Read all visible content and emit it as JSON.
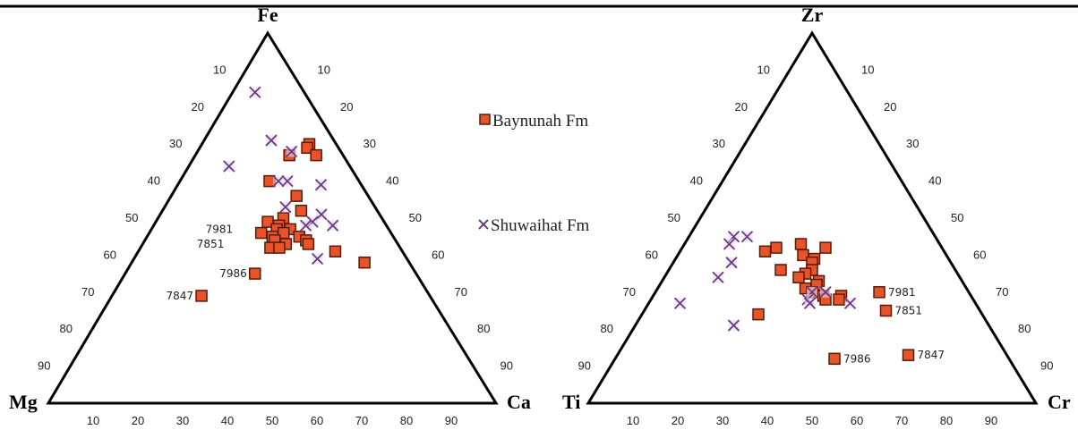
{
  "chart_data": [
    {
      "type": "ternary",
      "vertices": {
        "top": "Fe",
        "left": "Mg",
        "right": "Ca"
      },
      "ticks": {
        "bottom": [
          "10",
          "20",
          "30",
          "40",
          "50",
          "60",
          "70",
          "80",
          "90"
        ],
        "left": [
          "10",
          "20",
          "30",
          "40",
          "50",
          "60",
          "70",
          "80",
          "90"
        ],
        "right": [
          "10",
          "20",
          "30",
          "40",
          "50",
          "60",
          "70",
          "80",
          "90"
        ]
      },
      "series": [
        {
          "name": "Baynunah Fm",
          "marker": "square",
          "points": [
            {
              "top": 70,
              "left": 6,
              "right": 24
            },
            {
              "top": 69,
              "left": 7,
              "right": 24
            },
            {
              "top": 67,
              "left": 6,
              "right": 27
            },
            {
              "top": 67,
              "left": 12,
              "right": 21
            },
            {
              "top": 60,
              "left": 20,
              "right": 20
            },
            {
              "top": 56,
              "left": 16,
              "right": 28
            },
            {
              "top": 52,
              "left": 17,
              "right": 31
            },
            {
              "top": 50,
              "left": 22,
              "right": 28
            },
            {
              "top": 49,
              "left": 26,
              "right": 25
            },
            {
              "top": 48,
              "left": 24,
              "right": 28
            },
            {
              "top": 47,
              "left": 22,
              "right": 31
            },
            {
              "top": 47,
              "left": 25,
              "right": 28
            },
            {
              "top": 46,
              "left": 29,
              "right": 25
            },
            {
              "top": 46,
              "left": 24,
              "right": 30
            },
            {
              "top": 45,
              "left": 21,
              "right": 34
            },
            {
              "top": 45,
              "left": 27,
              "right": 28
            },
            {
              "top": 44,
              "left": 20,
              "right": 36
            },
            {
              "top": 44,
              "left": 27,
              "right": 29
            },
            {
              "top": 43,
              "left": 20,
              "right": 37
            },
            {
              "top": 43,
              "left": 25,
              "right": 32
            },
            {
              "top": 42,
              "left": 29,
              "right": 29
            },
            {
              "top": 42,
              "left": 27,
              "right": 31
            },
            {
              "top": 41,
              "left": 15,
              "right": 44
            },
            {
              "top": 38,
              "left": 10,
              "right": 52
            },
            {
              "top": 35,
              "left": 36,
              "right": 29
            },
            {
              "top": 29,
              "left": 51,
              "right": 20
            }
          ],
          "labels": [
            {
              "text": "7981",
              "top": 47,
              "left": 33,
              "right": 20
            },
            {
              "text": "7851",
              "top": 43,
              "left": 37,
              "right": 20
            },
            {
              "text": "7986",
              "top": 35,
              "left": 36,
              "right": 29
            },
            {
              "text": "7847",
              "top": 29,
              "left": 51,
              "right": 20
            }
          ]
        },
        {
          "name": "Shuwaihat Fm",
          "marker": "x",
          "points": [
            {
              "top": 84,
              "left": 11,
              "right": 5
            },
            {
              "top": 71,
              "left": 14,
              "right": 15
            },
            {
              "top": 68,
              "left": 11,
              "right": 21
            },
            {
              "top": 64,
              "left": 27,
              "right": 9
            },
            {
              "top": 60,
              "left": 16,
              "right": 24
            },
            {
              "top": 60,
              "left": 18,
              "right": 22
            },
            {
              "top": 59,
              "left": 9,
              "right": 32
            },
            {
              "top": 53,
              "left": 20,
              "right": 27
            },
            {
              "top": 51,
              "left": 13,
              "right": 36
            },
            {
              "top": 49,
              "left": 16,
              "right": 35
            },
            {
              "top": 48,
              "left": 18,
              "right": 34
            },
            {
              "top": 48,
              "left": 12,
              "right": 40
            },
            {
              "top": 39,
              "left": 20,
              "right": 41
            }
          ]
        }
      ]
    },
    {
      "type": "ternary",
      "vertices": {
        "top": "Zr",
        "left": "Ti",
        "right": "Cr"
      },
      "ticks": {
        "bottom": [
          "10",
          "20",
          "30",
          "40",
          "50",
          "60",
          "70",
          "80",
          "90"
        ],
        "left": [
          "10",
          "20",
          "30",
          "40",
          "50",
          "60",
          "70",
          "80",
          "90"
        ],
        "right": [
          "10",
          "20",
          "30",
          "40",
          "50",
          "60",
          "70",
          "80",
          "90"
        ]
      },
      "series": [
        {
          "name": "Baynunah Fm",
          "marker": "square",
          "points": [
            {
              "top": 43,
              "left": 31,
              "right": 26
            },
            {
              "top": 42,
              "left": 37,
              "right": 21
            },
            {
              "top": 42,
              "left": 26,
              "right": 32
            },
            {
              "top": 41,
              "left": 40,
              "right": 19
            },
            {
              "top": 40,
              "left": 32,
              "right": 28
            },
            {
              "top": 39,
              "left": 30,
              "right": 31
            },
            {
              "top": 38,
              "left": 31,
              "right": 31
            },
            {
              "top": 36,
              "left": 39,
              "right": 25
            },
            {
              "top": 36,
              "left": 32,
              "right": 32
            },
            {
              "top": 35,
              "left": 34,
              "right": 31
            },
            {
              "top": 34,
              "left": 36,
              "right": 30
            },
            {
              "top": 33,
              "left": 32,
              "right": 35
            },
            {
              "top": 32,
              "left": 33,
              "right": 35
            },
            {
              "top": 31,
              "left": 36,
              "right": 33
            },
            {
              "top": 30,
              "left": 35,
              "right": 35
            },
            {
              "top": 29,
              "left": 33,
              "right": 38
            },
            {
              "top": 29,
              "left": 29,
              "right": 42
            },
            {
              "top": 28,
              "left": 33,
              "right": 39
            },
            {
              "top": 28,
              "left": 30,
              "right": 42
            },
            {
              "top": 30,
              "left": 20,
              "right": 50
            },
            {
              "top": 25,
              "left": 21,
              "right": 54
            },
            {
              "top": 24,
              "left": 50,
              "right": 26
            },
            {
              "top": 12,
              "left": 39,
              "right": 49
            },
            {
              "top": 13,
              "left": 22,
              "right": 65
            }
          ],
          "labels": [
            {
              "text": "7981",
              "top": 30,
              "left": 20,
              "right": 50
            },
            {
              "text": "7851",
              "top": 25,
              "left": 21,
              "right": 54
            },
            {
              "text": "7986",
              "top": 12,
              "left": 39,
              "right": 49
            },
            {
              "text": "7847",
              "top": 13,
              "left": 22,
              "right": 65
            }
          ]
        },
        {
          "name": "Shuwaihat Fm",
          "marker": "x",
          "points": [
            {
              "top": 45,
              "left": 45,
              "right": 10
            },
            {
              "top": 45,
              "left": 42,
              "right": 13
            },
            {
              "top": 43,
              "left": 47,
              "right": 10
            },
            {
              "top": 38,
              "left": 49,
              "right": 13
            },
            {
              "top": 34,
              "left": 54,
              "right": 12
            },
            {
              "top": 30,
              "left": 35,
              "right": 35
            },
            {
              "top": 28,
              "left": 37,
              "right": 35
            },
            {
              "top": 27,
              "left": 37,
              "right": 36
            },
            {
              "top": 30,
              "left": 32,
              "right": 38
            },
            {
              "top": 27,
              "left": 28,
              "right": 45
            },
            {
              "top": 27,
              "left": 66,
              "right": 7
            },
            {
              "top": 21,
              "left": 57,
              "right": 22
            }
          ]
        }
      ]
    }
  ],
  "legend": {
    "items": [
      {
        "label": "Baynunah Fm",
        "marker": "square",
        "color": "#e8542a"
      },
      {
        "label": "Shuwaihat Fm",
        "marker": "x",
        "color": "#6a3a80"
      }
    ]
  },
  "colors": {
    "square_fill": "#e8542a",
    "square_stroke": "#5a1a08",
    "x_stroke": "#6a3a80",
    "x_fill": "#ead9f0",
    "frame": "#000000"
  }
}
